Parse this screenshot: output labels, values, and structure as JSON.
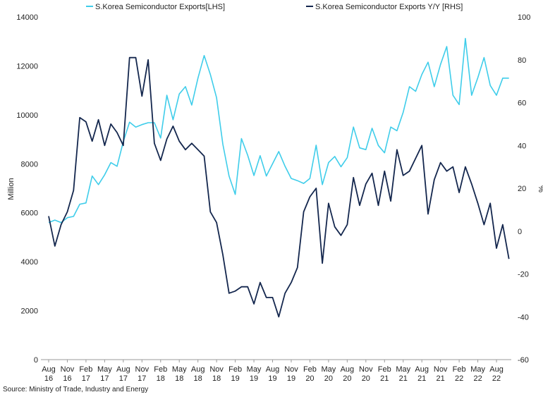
{
  "chart_data": {
    "type": "line",
    "title": "",
    "x_labels": [
      [
        "Aug",
        "16"
      ],
      [
        "Nov",
        "16"
      ],
      [
        "Feb",
        "17"
      ],
      [
        "May",
        "17"
      ],
      [
        "Aug",
        "17"
      ],
      [
        "Nov",
        "17"
      ],
      [
        "Feb",
        "18"
      ],
      [
        "May",
        "18"
      ],
      [
        "Aug",
        "18"
      ],
      [
        "Nov",
        "18"
      ],
      [
        "Feb",
        "19"
      ],
      [
        "May",
        "19"
      ],
      [
        "Aug",
        "19"
      ],
      [
        "Nov",
        "19"
      ],
      [
        "Feb",
        "20"
      ],
      [
        "May",
        "20"
      ],
      [
        "Aug",
        "20"
      ],
      [
        "Nov",
        "20"
      ],
      [
        "Feb",
        "21"
      ],
      [
        "May",
        "21"
      ],
      [
        "Aug",
        "21"
      ],
      [
        "Nov",
        "21"
      ],
      [
        "Feb",
        "22"
      ],
      [
        "May",
        "22"
      ],
      [
        "Aug",
        "22"
      ]
    ],
    "x_start": "2016-08",
    "left_axis": {
      "label": "Million",
      "min": 0,
      "max": 14000,
      "ticks": [
        "0",
        "2000",
        "4000",
        "6000",
        "8000",
        "10000",
        "12000",
        "14000"
      ]
    },
    "right_axis": {
      "label": "%",
      "min": -60,
      "max": 100,
      "ticks": [
        "-60",
        "-40",
        "-20",
        "0",
        "20",
        "40",
        "60",
        "80",
        "100"
      ]
    },
    "legend_position": "top",
    "series": [
      {
        "name": "S.Korea Semiconductor Exports[LHS]",
        "axis": "left",
        "color": "#3fcdea",
        "values": [
          5600,
          5700,
          5600,
          5800,
          5850,
          6350,
          6400,
          7500,
          7150,
          7550,
          8050,
          7900,
          8900,
          9700,
          9500,
          9600,
          9680,
          9680,
          9050,
          10800,
          9800,
          10850,
          11150,
          10400,
          11500,
          12420,
          11650,
          10700,
          8800,
          7500,
          6750,
          9030,
          8350,
          7520,
          8330,
          7500,
          8000,
          8500,
          7900,
          7400,
          7310,
          7200,
          7400,
          8760,
          7150,
          8050,
          8300,
          7880,
          8250,
          9500,
          8650,
          8580,
          9450,
          8750,
          8450,
          9500,
          9350,
          10100,
          11150,
          10960,
          11650,
          12150,
          11150,
          12060,
          12790,
          10800,
          10420,
          13120,
          10800,
          11520,
          12340,
          11200,
          10800,
          11500,
          11500
        ],
        "x_index_start": 0
      },
      {
        "name": "S.Korea Semiconductor Exports Y/Y [RHS]",
        "axis": "right",
        "color": "#14274e",
        "values": [
          7,
          -7,
          3,
          9,
          19,
          53,
          51,
          42,
          52,
          40,
          50,
          46,
          40,
          81,
          81,
          63,
          80,
          41,
          33,
          43,
          49,
          42,
          38,
          41,
          38,
          35,
          9,
          4,
          -11,
          -29,
          -28,
          -26,
          -26,
          -34,
          -24,
          -31,
          -31,
          -40,
          -29,
          -24,
          -17,
          9,
          16,
          20,
          -15,
          13,
          2,
          -2,
          3,
          25,
          12,
          22,
          27,
          12,
          28,
          14,
          38,
          26,
          28,
          34,
          40,
          8,
          24,
          32,
          28,
          30,
          18,
          30,
          22,
          13,
          3,
          13,
          -8,
          3,
          -13
        ],
        "x_index_start": 0
      }
    ],
    "source": "Source: Ministry of Trade, Industry and Energy"
  }
}
